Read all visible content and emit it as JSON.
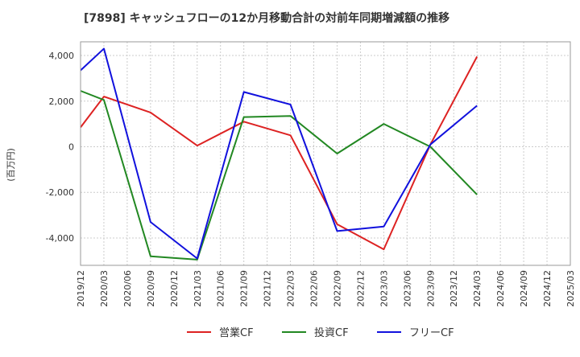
{
  "chart_data": {
    "type": "line",
    "title": "[7898]  キャッシュフローの12か月移動合計の対前年同期増減額の推移",
    "ylabel": "(百万円)",
    "xlabel": "",
    "ylim": [
      -5200,
      4600
    ],
    "yticks": [
      4000,
      2000,
      0,
      -2000,
      -4000
    ],
    "ytick_labels": [
      "4,000",
      "2,000",
      "0",
      "-2,000",
      "-4,000"
    ],
    "categories": [
      "2019/12",
      "2020/03",
      "2020/06",
      "2020/09",
      "2020/12",
      "2021/03",
      "2021/06",
      "2021/09",
      "2021/12",
      "2022/03",
      "2022/06",
      "2022/09",
      "2022/12",
      "2023/03",
      "2023/06",
      "2023/09",
      "2023/12",
      "2024/03",
      "2024/06",
      "2024/09",
      "2024/12",
      "2025/03"
    ],
    "series": [
      {
        "name": "営業CF",
        "color": "#dd2222",
        "values": [
          850,
          2200,
          null,
          1500,
          null,
          50,
          null,
          1100,
          null,
          500,
          null,
          -3400,
          null,
          -4500,
          null,
          100,
          null,
          3950,
          null,
          null,
          null,
          null
        ]
      },
      {
        "name": "投資CF",
        "color": "#228822",
        "values": [
          2450,
          2050,
          null,
          -4800,
          null,
          -4950,
          null,
          1300,
          null,
          1350,
          null,
          -300,
          null,
          1000,
          null,
          0,
          null,
          -2100,
          null,
          null,
          null,
          null
        ]
      },
      {
        "name": "フリーCF",
        "color": "#1111dd",
        "values": [
          3350,
          4300,
          null,
          -3300,
          null,
          -4900,
          null,
          2400,
          null,
          1850,
          null,
          -3700,
          null,
          -3500,
          null,
          100,
          null,
          1800,
          null,
          null,
          null,
          null
        ]
      }
    ]
  }
}
